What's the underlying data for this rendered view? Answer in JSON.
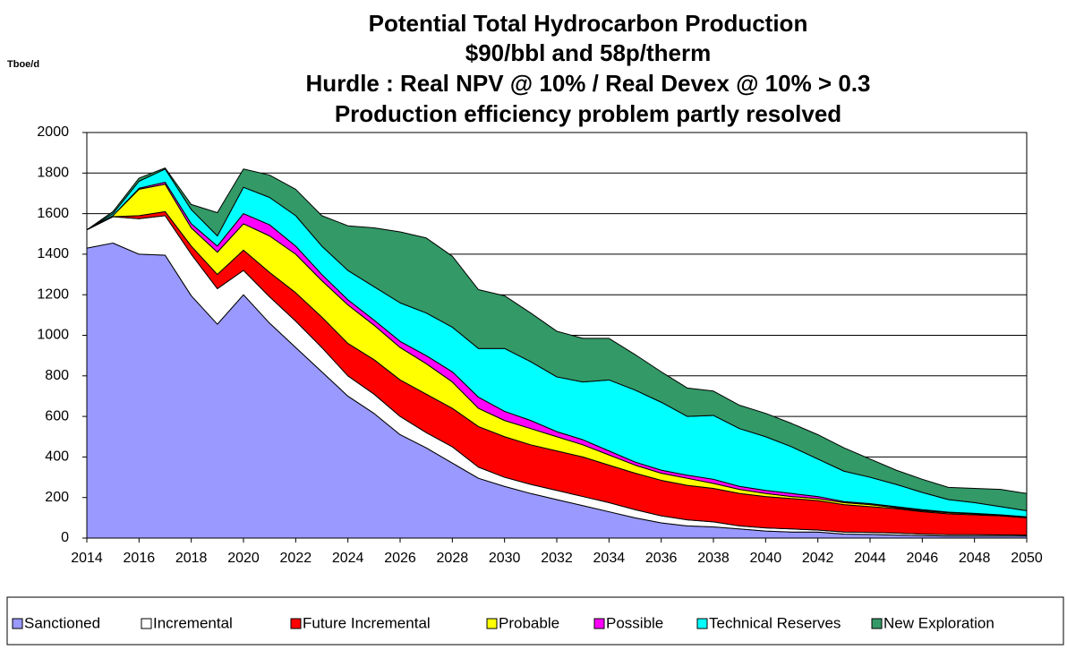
{
  "chart_data": {
    "type": "stacked_area",
    "title": [
      "Potential Total Hydrocarbon Production",
      "$90/bbl and 58p/therm",
      "Hurdle : Real NPV @ 10% / Real Devex @ 10% > 0.3",
      "Production efficiency problem partly resolved"
    ],
    "y_label": "Tboe/d",
    "x": [
      2014,
      2015,
      2016,
      2017,
      2018,
      2019,
      2020,
      2021,
      2022,
      2023,
      2024,
      2025,
      2026,
      2027,
      2028,
      2029,
      2030,
      2031,
      2032,
      2033,
      2034,
      2035,
      2036,
      2037,
      2038,
      2039,
      2040,
      2041,
      2042,
      2043,
      2044,
      2045,
      2046,
      2047,
      2048,
      2049,
      2050
    ],
    "xlim": [
      2014,
      2050
    ],
    "xticks": [
      2014,
      2016,
      2018,
      2020,
      2022,
      2024,
      2026,
      2028,
      2030,
      2032,
      2034,
      2036,
      2038,
      2040,
      2042,
      2044,
      2046,
      2048,
      2050
    ],
    "ylim": [
      0,
      2000
    ],
    "yticks": [
      0,
      200,
      400,
      600,
      800,
      1000,
      1200,
      1400,
      1600,
      1800,
      2000
    ],
    "grid": true,
    "legend": "bottom",
    "series": [
      {
        "name": "Sanctioned",
        "color": "#9999ff",
        "values": [
          1430,
          1455,
          1400,
          1395,
          1195,
          1055,
          1200,
          1060,
          940,
          820,
          700,
          615,
          510,
          445,
          370,
          295,
          255,
          220,
          190,
          160,
          130,
          100,
          75,
          60,
          55,
          45,
          35,
          30,
          30,
          20,
          18,
          15,
          12,
          10,
          10,
          10,
          10
        ]
      },
      {
        "name": "Incremental",
        "color": "#ffffff",
        "values": [
          90,
          130,
          175,
          195,
          205,
          175,
          120,
          130,
          130,
          120,
          100,
          95,
          90,
          75,
          80,
          55,
          45,
          45,
          45,
          45,
          45,
          40,
          35,
          30,
          25,
          15,
          15,
          15,
          10,
          10,
          10,
          10,
          8,
          7,
          7,
          6,
          5
        ]
      },
      {
        "name": "Future Incremental",
        "color": "#ff0000",
        "values": [
          0,
          0,
          15,
          20,
          40,
          70,
          100,
          120,
          140,
          150,
          160,
          170,
          180,
          190,
          190,
          200,
          200,
          195,
          195,
          195,
          185,
          180,
          175,
          170,
          165,
          160,
          155,
          150,
          145,
          135,
          127,
          120,
          110,
          103,
          98,
          94,
          85
        ]
      },
      {
        "name": "Probable",
        "color": "#ffff00",
        "values": [
          0,
          5,
          130,
          135,
          90,
          110,
          130,
          180,
          190,
          180,
          190,
          170,
          160,
          150,
          130,
          90,
          80,
          80,
          70,
          60,
          50,
          40,
          35,
          35,
          25,
          20,
          15,
          10,
          10,
          10,
          10,
          5,
          5,
          5,
          5,
          2,
          3
        ]
      },
      {
        "name": "Possible",
        "color": "#ff00ff",
        "values": [
          0,
          0,
          5,
          10,
          20,
          30,
          50,
          55,
          40,
          30,
          25,
          25,
          30,
          40,
          50,
          55,
          45,
          40,
          25,
          25,
          20,
          15,
          15,
          15,
          20,
          15,
          15,
          15,
          10,
          5,
          5,
          5,
          5,
          3,
          2,
          3,
          2
        ]
      },
      {
        "name": "Technical Reserves",
        "color": "#00ffff",
        "values": [
          0,
          10,
          35,
          65,
          70,
          50,
          130,
          135,
          150,
          140,
          145,
          165,
          190,
          210,
          220,
          240,
          310,
          290,
          270,
          285,
          350,
          355,
          335,
          290,
          315,
          285,
          265,
          230,
          185,
          150,
          130,
          110,
          85,
          62,
          53,
          40,
          30
        ]
      },
      {
        "name": "New Exploration",
        "color": "#339966",
        "values": [
          0,
          10,
          15,
          5,
          25,
          115,
          90,
          110,
          130,
          150,
          220,
          290,
          350,
          370,
          350,
          290,
          260,
          240,
          225,
          215,
          205,
          175,
          150,
          140,
          120,
          115,
          115,
          115,
          120,
          115,
          90,
          70,
          65,
          60,
          70,
          85,
          85
        ]
      }
    ]
  }
}
